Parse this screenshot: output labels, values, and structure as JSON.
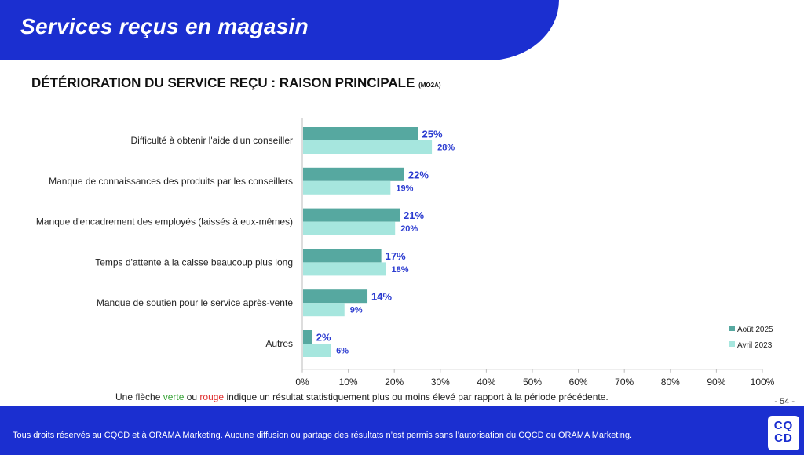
{
  "header": {
    "title": "Services reçus en magasin"
  },
  "subtitle": {
    "main": "DÉTÉRIORATION DU SERVICE REÇU : RAISON PRINCIPALE",
    "code": "(MO2A)"
  },
  "chart_data": {
    "type": "bar",
    "orientation": "horizontal",
    "categories": [
      "Difficulté à obtenir l'aide d'un conseiller",
      "Manque de connaissances des produits par les conseillers",
      "Manque d'encadrement des employés (laissés à eux-mêmes)",
      "Temps d'attente à la caisse beaucoup plus long",
      "Manque de soutien pour le service après-vente",
      "Autres"
    ],
    "series": [
      {
        "name": "Août 2025",
        "values": [
          25,
          22,
          21,
          17,
          14,
          2
        ],
        "color": "#56a8a0"
      },
      {
        "name": "Avril 2023",
        "values": [
          28,
          19,
          20,
          18,
          9,
          6
        ],
        "color": "#a6e6de"
      }
    ],
    "xlim": [
      0,
      100
    ],
    "xticks": [
      "0%",
      "10%",
      "20%",
      "30%",
      "40%",
      "50%",
      "60%",
      "70%",
      "80%",
      "90%",
      "100%"
    ],
    "label_color": "#2b3bd0",
    "legend": "bottom-right"
  },
  "note": {
    "before": "Une flèche ",
    "green": "verte",
    "mid": " ou ",
    "red": "rouge",
    "after": " indique un résultat statistiquement plus ou moins élevé par rapport à la période précédente."
  },
  "page": "- 54 -",
  "footer": {
    "copyright": "Tous droits réservés au CQCD et à ORAMA Marketing. Aucune diffusion ou partage des résultats n’est permis sans l’autorisation du CQCD ou ORAMA Marketing.",
    "logo_top": "CQ",
    "logo_bottom": "CD"
  }
}
